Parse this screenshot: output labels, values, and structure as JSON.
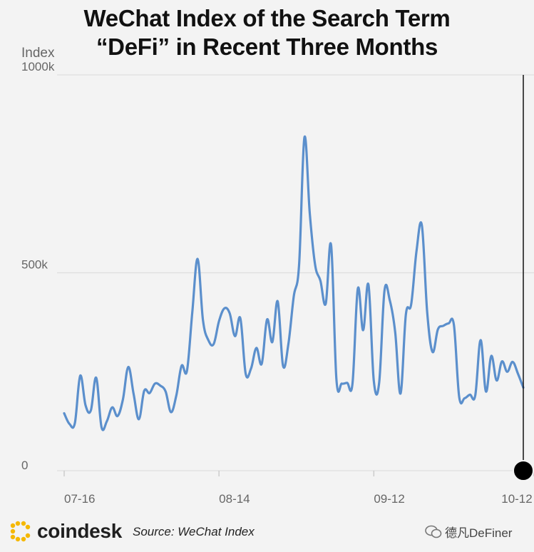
{
  "header": {
    "title_line1": "WeChat Index of the Search Term",
    "title_line2": "“DeFi” in Recent Three Months"
  },
  "footer": {
    "brand": "coindesk",
    "source": "Source: WeChat Index",
    "watermark": "德凡DeFiner"
  },
  "colors": {
    "line": "#5b8fcc",
    "grid": "#dddddd",
    "axis_text": "#666666",
    "brand_yellow": "#f5b800"
  },
  "chart_data": {
    "type": "line",
    "title": "WeChat Index of the Search Term “DeFi” in Recent Three Months",
    "ylabel": "Index",
    "xlabel": "",
    "ylim": [
      0,
      1000000
    ],
    "y_ticks": [
      {
        "value": 0,
        "label": "0"
      },
      {
        "value": 500000,
        "label": "500k"
      },
      {
        "value": 1000000,
        "label": "1000k"
      }
    ],
    "x_ticks": [
      {
        "index": 0,
        "label": "07-16"
      },
      {
        "index": 29,
        "label": "08-14"
      },
      {
        "index": 58,
        "label": "09-12"
      },
      {
        "index": 88,
        "label": "10-12"
      }
    ],
    "grid": true,
    "series": [
      {
        "name": "DeFi",
        "values": [
          145000,
          118000,
          120000,
          240000,
          165000,
          152000,
          235000,
          110000,
          125000,
          160000,
          138000,
          180000,
          262000,
          195000,
          130000,
          202000,
          196000,
          220000,
          215000,
          200000,
          148000,
          190000,
          265000,
          252000,
          400000,
          535000,
          380000,
          330000,
          320000,
          378000,
          410000,
          398000,
          340000,
          385000,
          245000,
          258000,
          310000,
          270000,
          382000,
          325000,
          428000,
          265000,
          320000,
          440000,
          520000,
          842000,
          650000,
          520000,
          480000,
          422000,
          570000,
          230000,
          220000,
          222000,
          220000,
          460000,
          355000,
          470000,
          227000,
          222000,
          455000,
          430000,
          350000,
          195000,
          395000,
          420000,
          555000,
          620000,
          400000,
          300000,
          357000,
          366000,
          372000,
          368000,
          186000,
          183000,
          192000,
          190000,
          330000,
          200000,
          290000,
          228000,
          276000,
          250000,
          275000,
          245000,
          210000
        ]
      }
    ]
  }
}
